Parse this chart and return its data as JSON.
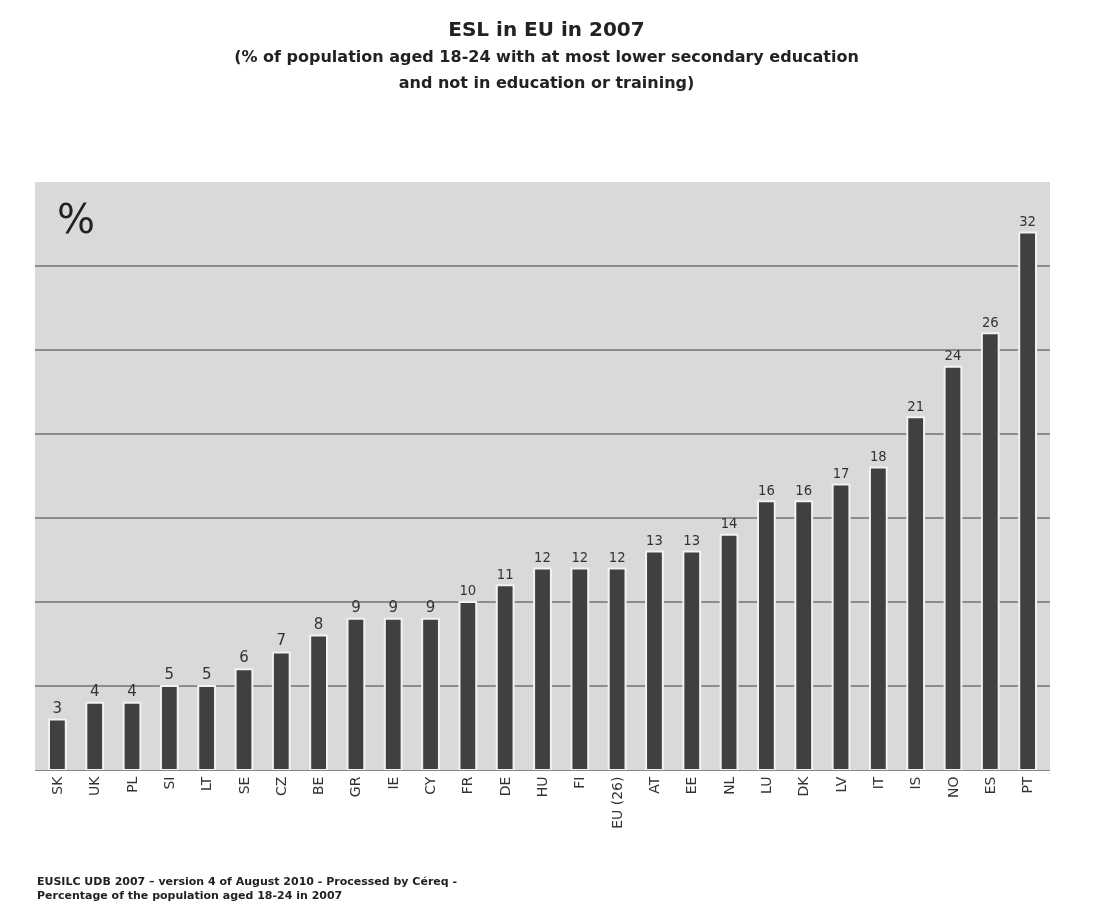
{
  "chart_data": {
    "type": "bar",
    "title": "ESL in EU in 2007",
    "subtitle": "(% of population aged 18-24 with at most lower secondary education\nand not in education or training)",
    "categories": [
      "SK",
      "UK",
      "PL",
      "SI",
      "LT",
      "SE",
      "CZ",
      "BE",
      "GR",
      "IE",
      "CY",
      "FR",
      "DE",
      "HU",
      "FI",
      "EU (26)",
      "AT",
      "EE",
      "NL",
      "LU",
      "DK",
      "LV",
      "IT",
      "IS",
      "NO",
      "ES",
      "PT"
    ],
    "values": [
      3,
      4,
      4,
      5,
      5,
      6,
      7,
      8,
      9,
      9,
      9,
      10,
      11,
      12,
      12,
      12,
      13,
      13,
      14,
      16,
      16,
      17,
      18,
      21,
      24,
      26,
      32
    ],
    "color": "#404040",
    "ylim": [
      0,
      35
    ],
    "yticks": [
      {
        "value": 0,
        "label": null
      },
      {
        "value": 5,
        "label": null
      },
      {
        "value": 10,
        "label": null
      },
      {
        "value": 15,
        "label": null
      },
      {
        "value": 20,
        "label": null
      },
      {
        "value": 25,
        "label": null
      },
      {
        "value": 30,
        "label": null
      },
      {
        "value": 35,
        "label": null
      }
    ],
    "tick_labels": "x",
    "grid": "y",
    "data_labels": true,
    "annotations": [
      "%",
      "EUSILC UDB 2007 – version 4 of August 2010 - Processed by Céreq -\nPercentage of the population aged 18-24 in 2007"
    ]
  }
}
